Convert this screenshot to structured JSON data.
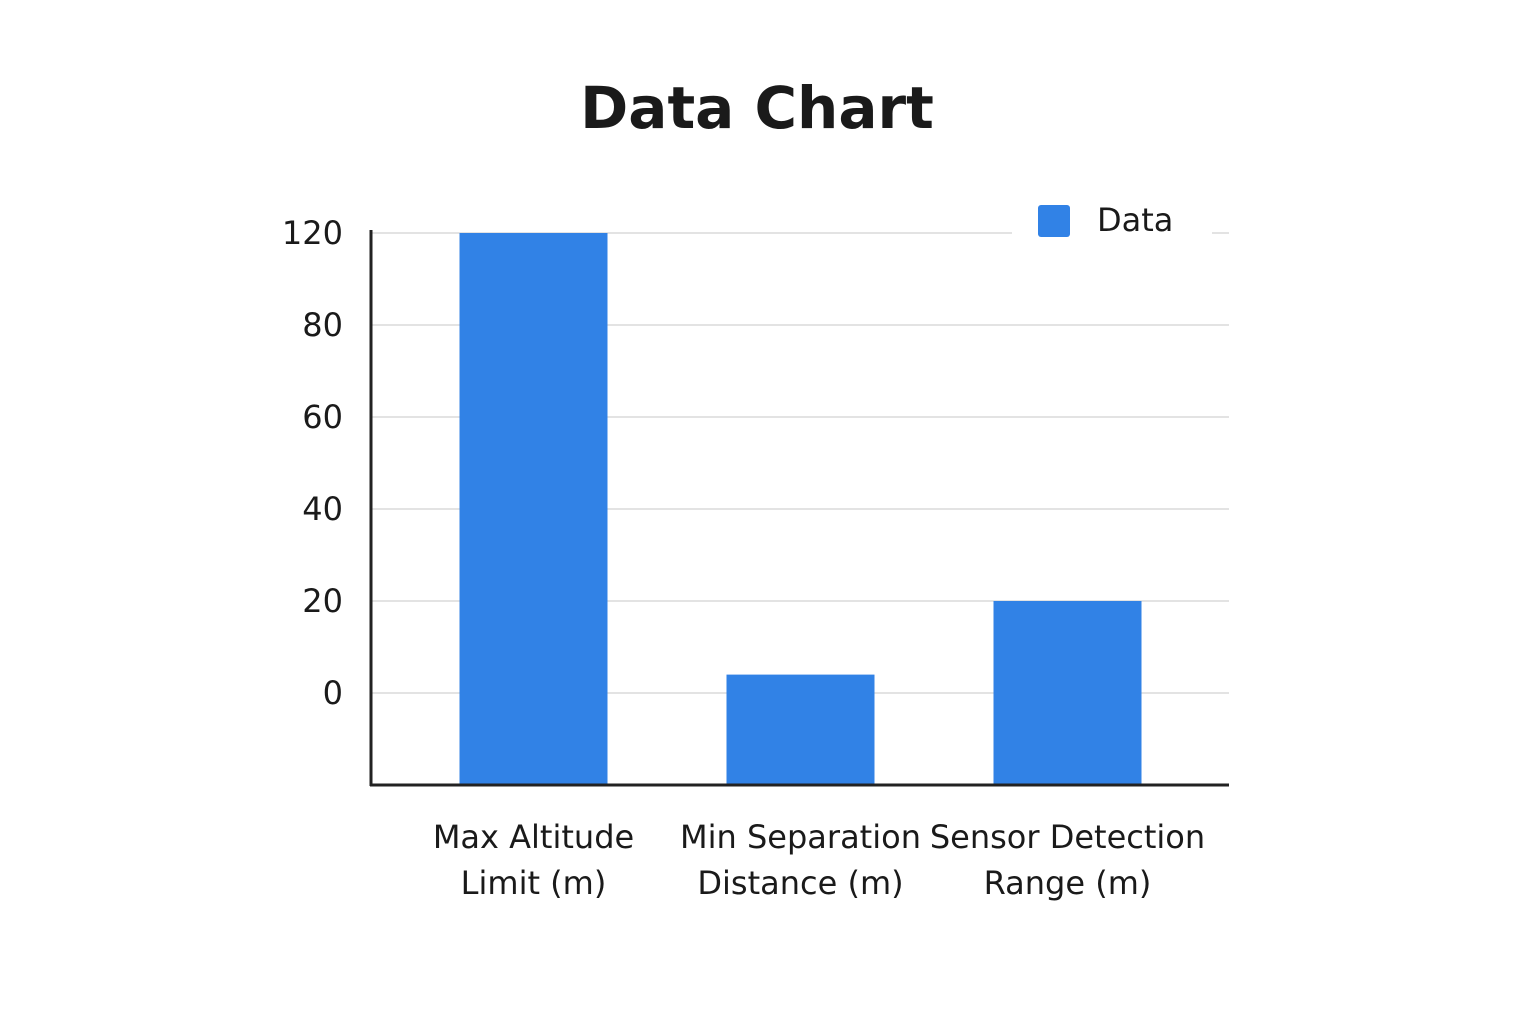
{
  "chart_data": {
    "type": "bar",
    "title": "Data Chart",
    "categories": [
      "Max Altitude Limit (m)",
      "Min Separation Distance (m)",
      "Sensor Detection Range (m)"
    ],
    "series": [
      {
        "name": "Data",
        "color": "#3182e6",
        "values": [
          120,
          4,
          20
        ]
      }
    ],
    "ylim": [
      -20,
      120
    ],
    "yticks": [
      0,
      20,
      40,
      60,
      80,
      120
    ],
    "grid": true,
    "legend": "top-right"
  }
}
